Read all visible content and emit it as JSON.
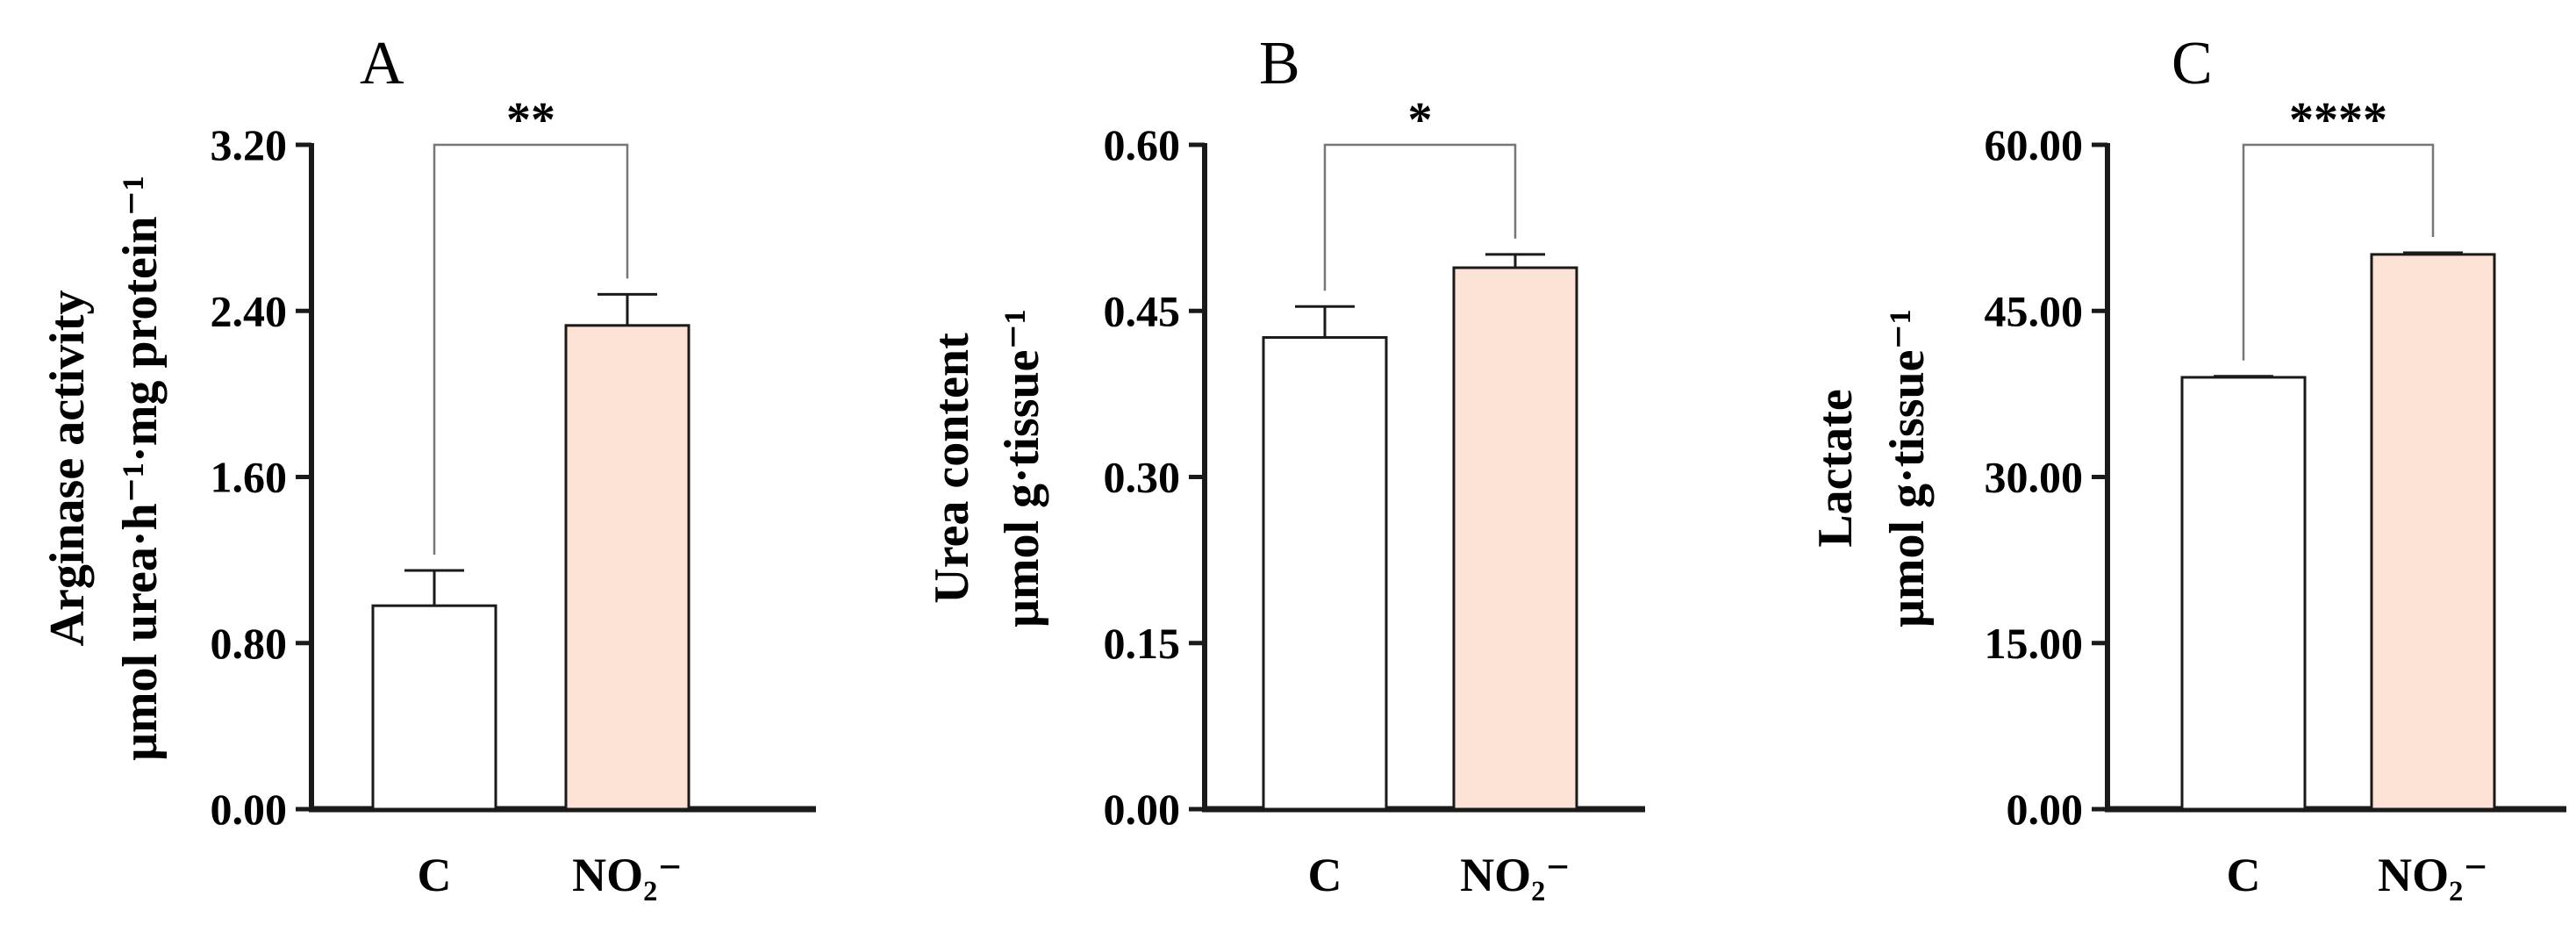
{
  "colors": {
    "control_bar": "#ffffff",
    "treatment_bar": "#fde3d5",
    "stroke": "#1a1a1a",
    "bracket": "#777777"
  },
  "chart_data": [
    {
      "type": "bar",
      "panel": "A",
      "categories": [
        "C",
        "NO₂⁻"
      ],
      "values": [
        0.98,
        2.33
      ],
      "errors": [
        0.17,
        0.15
      ],
      "ylabel": [
        "Arginase activity",
        "μmol urea·h⁻¹·mg protein⁻¹"
      ],
      "ylim": [
        0,
        3.2
      ],
      "yticks": [
        "0.00",
        "0.80",
        "1.60",
        "2.40",
        "3.20"
      ],
      "significance": "**",
      "bar_colors": [
        "#ffffff",
        "#fde3d5"
      ]
    },
    {
      "type": "bar",
      "panel": "B",
      "categories": [
        "C",
        "NO₂⁻"
      ],
      "values": [
        0.426,
        0.489
      ],
      "errors": [
        0.028,
        0.012
      ],
      "ylabel": [
        "Urea content",
        "μmol g·tissue⁻¹"
      ],
      "ylim": [
        0,
        0.6
      ],
      "yticks": [
        "0.00",
        "0.15",
        "0.30",
        "0.45",
        "0.60"
      ],
      "significance": "*",
      "bar_colors": [
        "#ffffff",
        "#fde3d5"
      ]
    },
    {
      "type": "bar",
      "panel": "C",
      "categories": [
        "C",
        "NO₂⁻"
      ],
      "values": [
        39.0,
        50.1
      ],
      "errors": [
        0.1,
        0.15
      ],
      "ylabel": [
        "Lactate",
        "μmol g·tissue⁻¹"
      ],
      "ylim": [
        0,
        60
      ],
      "yticks": [
        "0.00",
        "15.00",
        "30.00",
        "45.00",
        "60.00"
      ],
      "significance": "****",
      "bar_colors": [
        "#ffffff",
        "#fde3d5"
      ]
    }
  ]
}
